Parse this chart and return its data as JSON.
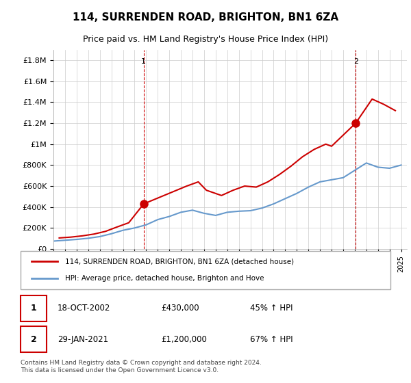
{
  "title": "114, SURRENDEN ROAD, BRIGHTON, BN1 6ZA",
  "subtitle": "Price paid vs. HM Land Registry's House Price Index (HPI)",
  "ylabel_ticks": [
    "£0",
    "£200K",
    "£400K",
    "£600K",
    "£800K",
    "£1M",
    "£1.2M",
    "£1.4M",
    "£1.6M",
    "£1.8M"
  ],
  "ylim": [
    0,
    1900000
  ],
  "yticks": [
    0,
    200000,
    400000,
    600000,
    800000,
    1000000,
    1200000,
    1400000,
    1600000,
    1800000
  ],
  "sale1_date": 2002.79,
  "sale1_price": 430000,
  "sale2_date": 2021.08,
  "sale2_price": 1200000,
  "legend_line1": "114, SURRENDEN ROAD, BRIGHTON, BN1 6ZA (detached house)",
  "legend_line2": "HPI: Average price, detached house, Brighton and Hove",
  "note1_label": "1",
  "note1_date": "18-OCT-2002",
  "note1_price": "£430,000",
  "note1_hpi": "45% ↑ HPI",
  "note2_label": "2",
  "note2_date": "29-JAN-2021",
  "note2_price": "£1,200,000",
  "note2_hpi": "67% ↑ HPI",
  "footnote": "Contains HM Land Registry data © Crown copyright and database right 2024.\nThis data is licensed under the Open Government Licence v3.0.",
  "line_color_red": "#cc0000",
  "line_color_blue": "#6699cc",
  "vline_color": "#cc0000",
  "bg_color": "#ffffff",
  "grid_color": "#cccccc",
  "hpi_years": [
    1995,
    1996,
    1997,
    1998,
    1999,
    2000,
    2001,
    2002,
    2003,
    2004,
    2005,
    2006,
    2007,
    2008,
    2009,
    2010,
    2011,
    2012,
    2013,
    2014,
    2015,
    2016,
    2017,
    2018,
    2019,
    2020,
    2021,
    2022,
    2023,
    2024,
    2025
  ],
  "hpi_values": [
    75000,
    83000,
    91000,
    102000,
    118000,
    145000,
    178000,
    200000,
    230000,
    280000,
    310000,
    350000,
    370000,
    340000,
    320000,
    350000,
    360000,
    365000,
    390000,
    430000,
    480000,
    530000,
    590000,
    640000,
    660000,
    680000,
    750000,
    820000,
    780000,
    770000,
    800000
  ],
  "price_years": [
    1995.5,
    1996.5,
    1997.5,
    1998.5,
    1999.5,
    2000.5,
    2001.5,
    2002.79,
    2006.5,
    2007.5,
    2008.2,
    2009.5,
    2010.5,
    2011.5,
    2012.5,
    2013.5,
    2014.5,
    2015.5,
    2016.5,
    2017.5,
    2018.5,
    2019.0,
    2021.08,
    2022.5,
    2023.5,
    2024.5
  ],
  "price_values": [
    105000,
    113000,
    125000,
    142000,
    168000,
    210000,
    250000,
    430000,
    600000,
    640000,
    560000,
    510000,
    560000,
    600000,
    590000,
    640000,
    710000,
    790000,
    880000,
    950000,
    1000000,
    980000,
    1200000,
    1430000,
    1380000,
    1320000
  ]
}
